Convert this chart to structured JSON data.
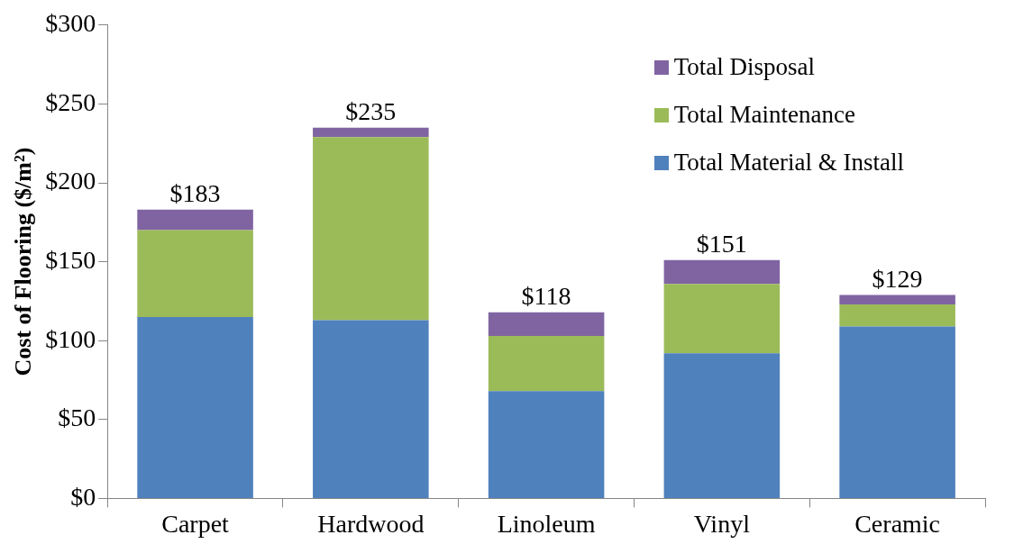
{
  "chart_data": {
    "type": "bar",
    "stacked": true,
    "ylabel": "Cost of Flooring ($/m²)",
    "categories": [
      "Carpet",
      "Hardwood",
      "Linoleum",
      "Vinyl",
      "Ceramic"
    ],
    "series": [
      {
        "name": "Total Material & Install",
        "color": "#4f81bd",
        "values": [
          115,
          113,
          68,
          92,
          109
        ]
      },
      {
        "name": "Total Maintenance",
        "color": "#9bbb59",
        "values": [
          55,
          116,
          35,
          44,
          14
        ]
      },
      {
        "name": "Total Disposal",
        "color": "#8064a2",
        "values": [
          13,
          6,
          15,
          15,
          6
        ]
      }
    ],
    "totals": [
      "$183",
      "$235",
      "$118",
      "$151",
      "$129"
    ],
    "ylim": [
      0,
      300
    ],
    "yticks": [
      {
        "value": 0,
        "label": "$0"
      },
      {
        "value": 50,
        "label": "$50"
      },
      {
        "value": 100,
        "label": "$100"
      },
      {
        "value": 150,
        "label": "$150"
      },
      {
        "value": 200,
        "label": "$200"
      },
      {
        "value": 250,
        "label": "$250"
      },
      {
        "value": 300,
        "label": "$300"
      }
    ],
    "grid": false,
    "legend": "top right"
  }
}
